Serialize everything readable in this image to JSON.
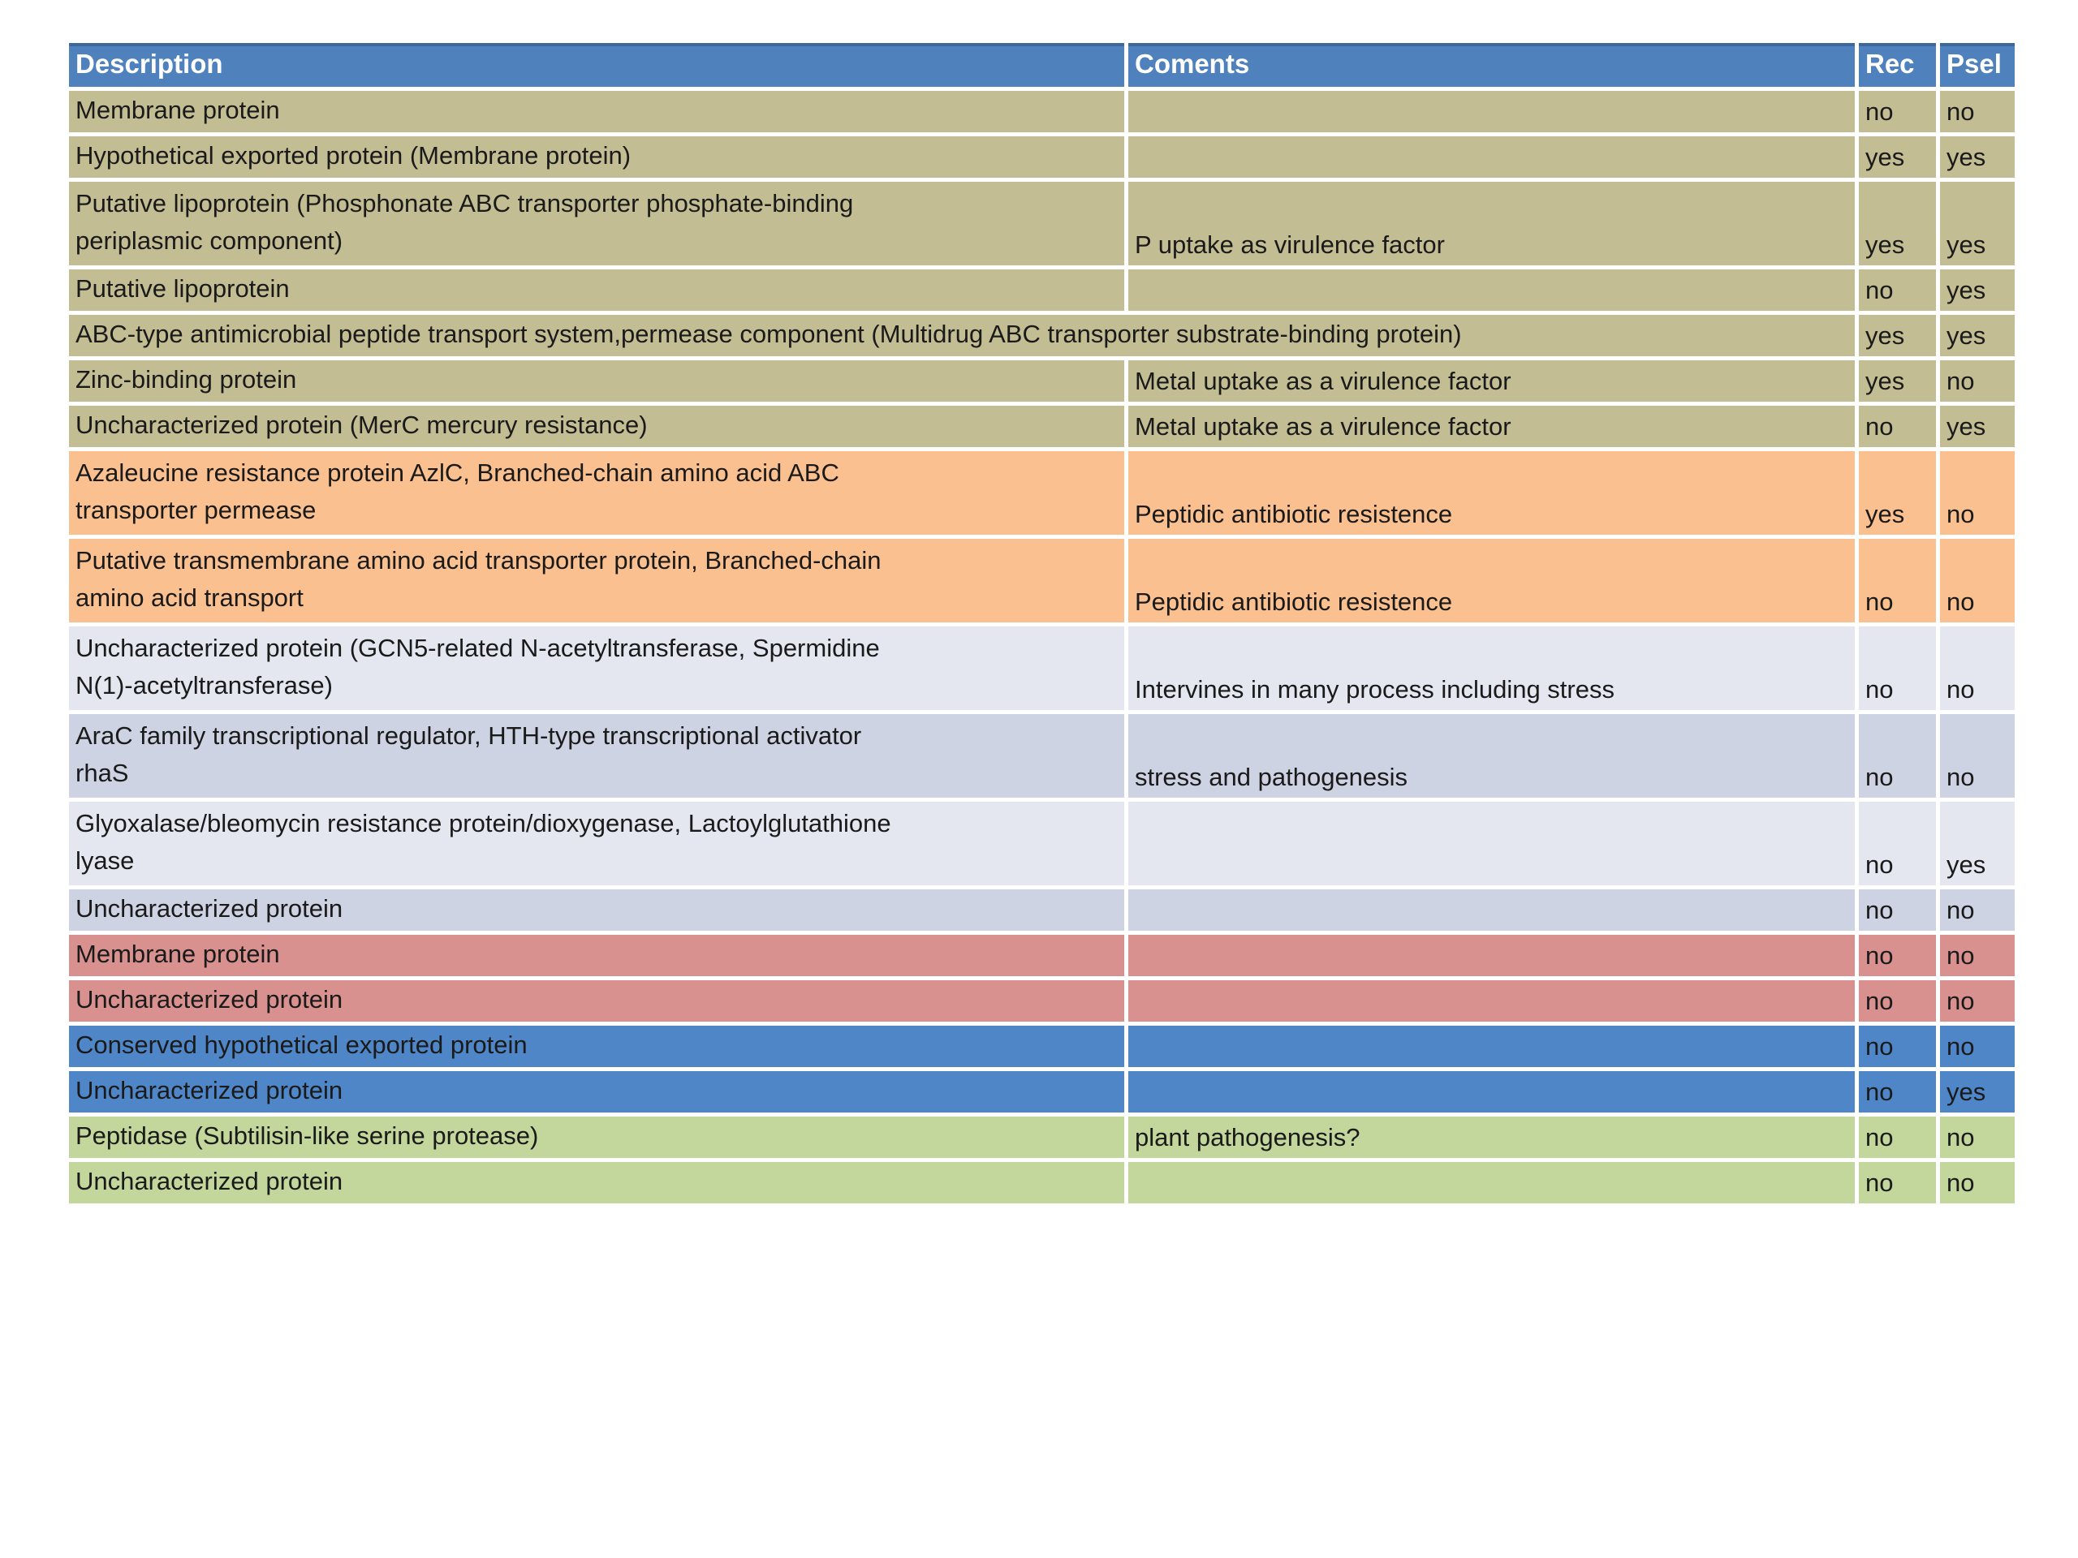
{
  "page": {
    "background_color": "#FFFFFF"
  },
  "table": {
    "headers": {
      "description": "Description",
      "comments": "Coments",
      "rec": "Rec",
      "psel": "Psel"
    },
    "header_text_color": "#FFFFFF",
    "body_text_color": "#1A1A1A",
    "band_colors": {
      "header": "#4F81BD",
      "khaki": "#C3BD93",
      "orange": "#FAC090",
      "lavender-light": "#E4E7F0",
      "lavender-dark": "#CDD3E3",
      "red": "#D8918F",
      "blue": "#4F86C8",
      "green": "#C3D69B"
    },
    "rows": [
      {
        "description": "Membrane protein",
        "comment": "",
        "rec": "no",
        "psel": "no",
        "band": "khaki",
        "lines": 1,
        "merged": false
      },
      {
        "description": "Hypothetical exported protein (Membrane protein)",
        "comment": "",
        "rec": "yes",
        "psel": "yes",
        "band": "khaki",
        "lines": 1,
        "merged": false
      },
      {
        "description": "Putative lipoprotein (Phosphonate ABC transporter phosphate-binding\nperiplasmic component)",
        "comment": "P uptake as virulence factor",
        "rec": "yes",
        "psel": "yes",
        "band": "khaki",
        "lines": 2,
        "merged": false
      },
      {
        "description": "Putative lipoprotein",
        "comment": "",
        "rec": "no",
        "psel": "yes",
        "band": "khaki",
        "lines": 1,
        "merged": false
      },
      {
        "description": "ABC-type antimicrobial peptide transport system,permease component (Multidrug ABC transporter substrate-binding protein)",
        "comment": "",
        "rec": "yes",
        "psel": "yes",
        "band": "khaki",
        "lines": 1,
        "merged": true
      },
      {
        "description": "Zinc-binding protein",
        "comment": "Metal uptake as a virulence factor",
        "rec": "yes",
        "psel": "no",
        "band": "khaki",
        "lines": 1,
        "merged": false
      },
      {
        "description": "Uncharacterized protein (MerC mercury resistance)",
        "comment": "Metal uptake as a virulence factor",
        "rec": "no",
        "psel": "yes",
        "band": "khaki",
        "lines": 1,
        "merged": false
      },
      {
        "description": "Azaleucine resistance protein AzlC, Branched-chain amino acid ABC\ntransporter permease",
        "comment": "Peptidic antibiotic resistence",
        "rec": "yes",
        "psel": "no",
        "band": "orange",
        "lines": 2,
        "merged": false
      },
      {
        "description": "Putative transmembrane amino acid transporter protein, Branched-chain\namino acid transport",
        "comment": "Peptidic antibiotic resistence",
        "rec": "no",
        "psel": "no",
        "band": "orange",
        "lines": 2,
        "merged": false
      },
      {
        "description": "Uncharacterized protein (GCN5-related N-acetyltransferase, Spermidine\nN(1)-acetyltransferase)",
        "comment": "Intervines in many process including stress",
        "rec": "no",
        "psel": "no",
        "band": "lavender-light",
        "lines": 2,
        "merged": false
      },
      {
        "description": "AraC family transcriptional regulator, HTH-type transcriptional activator\nrhaS",
        "comment": "stress and pathogenesis",
        "rec": "no",
        "psel": "no",
        "band": "lavender-dark",
        "lines": 2,
        "merged": false
      },
      {
        "description": "Glyoxalase/bleomycin resistance protein/dioxygenase, Lactoylglutathione\nlyase",
        "comment": "",
        "rec": "no",
        "psel": "yes",
        "band": "lavender-light",
        "lines": 2,
        "merged": false
      },
      {
        "description": "Uncharacterized protein",
        "comment": "",
        "rec": "no",
        "psel": "no",
        "band": "lavender-dark",
        "lines": 1,
        "merged": false
      },
      {
        "description": "Membrane protein",
        "comment": "",
        "rec": "no",
        "psel": "no",
        "band": "red",
        "lines": 1,
        "merged": false
      },
      {
        "description": "Uncharacterized protein",
        "comment": "",
        "rec": "no",
        "psel": "no",
        "band": "red",
        "lines": 1,
        "merged": false
      },
      {
        "description": "Conserved hypothetical exported protein",
        "comment": "",
        "rec": "no",
        "psel": "no",
        "band": "blue",
        "lines": 1,
        "merged": false
      },
      {
        "description": "Uncharacterized protein",
        "comment": "",
        "rec": "no",
        "psel": "yes",
        "band": "blue",
        "lines": 1,
        "merged": false
      },
      {
        "description": "Peptidase (Subtilisin-like serine protease)",
        "comment": "plant pathogenesis?",
        "rec": "no",
        "psel": "no",
        "band": "green",
        "lines": 1,
        "merged": false
      },
      {
        "description": "Uncharacterized protein",
        "comment": "",
        "rec": "no",
        "psel": "no",
        "band": "green",
        "lines": 1,
        "merged": false
      }
    ]
  }
}
